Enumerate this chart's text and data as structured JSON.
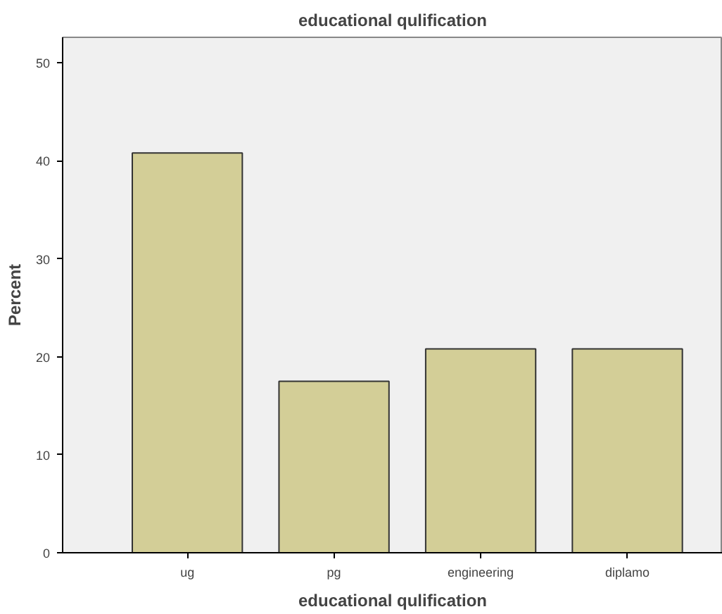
{
  "chart_data": {
    "type": "bar",
    "title": "educational qulification",
    "xlabel": "educational qulification",
    "ylabel": "Percent",
    "categories": [
      "ug",
      "pg",
      "engineering",
      "diplamo"
    ],
    "values": [
      40.8,
      17.5,
      20.8,
      20.8
    ],
    "color": "#d3ce97",
    "ylim": [
      0,
      52.6
    ],
    "yticks": [
      0,
      10,
      20,
      30,
      40,
      50
    ],
    "grid": false
  }
}
